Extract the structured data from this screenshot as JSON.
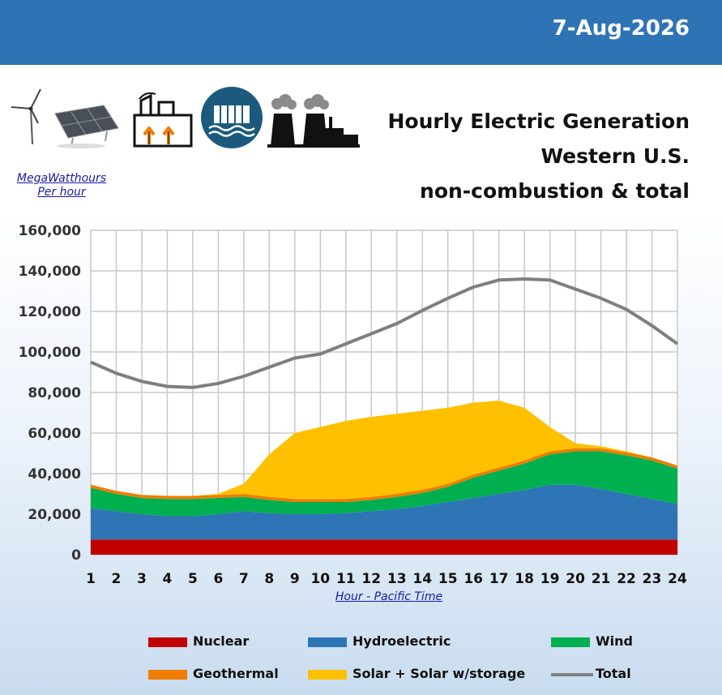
{
  "header": {
    "date": "7-Aug-2026"
  },
  "title": {
    "line1": "Hourly Electric Generation",
    "line2": "Western U.S.",
    "line3": "non-combustion & total"
  },
  "units": {
    "line1": "MegaWatthours",
    "line2": "Per hour"
  },
  "icons": [
    "wind-turbine-icon",
    "solar-panel-icon",
    "geothermal-plant-icon",
    "hydro-dam-icon",
    "nuclear-plant-icon"
  ],
  "colors": {
    "nuclear": "#c00000",
    "hydro": "#2e75b6",
    "wind": "#00b050",
    "geothermal": "#f07c00",
    "solar": "#ffc000",
    "total": "#7f7f7f",
    "header": "#2e74b5"
  },
  "chart_data": {
    "type": "area",
    "stacked": true,
    "x": [
      1,
      2,
      3,
      4,
      5,
      6,
      7,
      8,
      9,
      10,
      11,
      12,
      13,
      14,
      15,
      16,
      17,
      18,
      19,
      20,
      21,
      22,
      23,
      24
    ],
    "xlabel": "Hour - Pacific Time",
    "ylim": [
      0,
      160000
    ],
    "yticks": [
      "0",
      "20,000",
      "40,000",
      "60,000",
      "80,000",
      "100,000",
      "120,000",
      "140,000",
      "160,000"
    ],
    "grid": true,
    "series": [
      {
        "name": "Nuclear",
        "key": "nuclear",
        "values": [
          7500,
          7500,
          7500,
          7500,
          7500,
          7500,
          7500,
          7500,
          7500,
          7500,
          7500,
          7500,
          7500,
          7500,
          7500,
          7500,
          7500,
          7500,
          7500,
          7500,
          7500,
          7500,
          7500,
          7500
        ]
      },
      {
        "name": "Hydroelectric",
        "key": "hydro",
        "values": [
          15500,
          14000,
          12500,
          11500,
          11500,
          12500,
          14000,
          13000,
          12500,
          12500,
          13000,
          14000,
          15000,
          16500,
          18500,
          20500,
          22500,
          24500,
          27000,
          27000,
          25000,
          22500,
          20000,
          17500
        ]
      },
      {
        "name": "Wind",
        "key": "wind",
        "values": [
          10000,
          8500,
          8000,
          8500,
          8500,
          8000,
          7000,
          6500,
          6000,
          6000,
          5500,
          5500,
          6000,
          6500,
          7500,
          10000,
          11500,
          13000,
          15000,
          16500,
          18500,
          19000,
          19000,
          17500
        ]
      },
      {
        "name": "Geothermal",
        "key": "geothermal",
        "values": [
          1500,
          1500,
          1500,
          1500,
          1500,
          1500,
          1500,
          1500,
          1500,
          1500,
          1500,
          1500,
          1500,
          1500,
          1500,
          1500,
          1500,
          1500,
          1500,
          1500,
          1500,
          1500,
          1500,
          1500
        ]
      },
      {
        "name": "Solar + Solar w/storage",
        "key": "solar",
        "values": [
          0,
          0,
          0,
          0,
          0,
          500,
          5000,
          21000,
          32500,
          35500,
          38500,
          39500,
          39500,
          39000,
          37500,
          35500,
          33000,
          26000,
          12000,
          2500,
          1000,
          500,
          0,
          0
        ]
      },
      {
        "name": "Total",
        "key": "total",
        "line": true,
        "values": [
          95000,
          89500,
          85500,
          83000,
          82500,
          84500,
          88000,
          92500,
          97000,
          99000,
          104000,
          109000,
          114000,
          120500,
          126500,
          132000,
          135500,
          136000,
          135500,
          131000,
          126500,
          121000,
          113000,
          104000
        ]
      }
    ]
  },
  "legend": [
    {
      "label": "Nuclear",
      "key": "nuclear",
      "type": "box"
    },
    {
      "label": "Hydroelectric",
      "key": "hydro",
      "type": "box"
    },
    {
      "label": "Wind",
      "key": "wind",
      "type": "box"
    },
    {
      "label": "Geothermal",
      "key": "geothermal",
      "type": "box"
    },
    {
      "label": "Solar + Solar w/storage",
      "key": "solar",
      "type": "box"
    },
    {
      "label": "Total",
      "key": "total",
      "type": "line"
    }
  ]
}
